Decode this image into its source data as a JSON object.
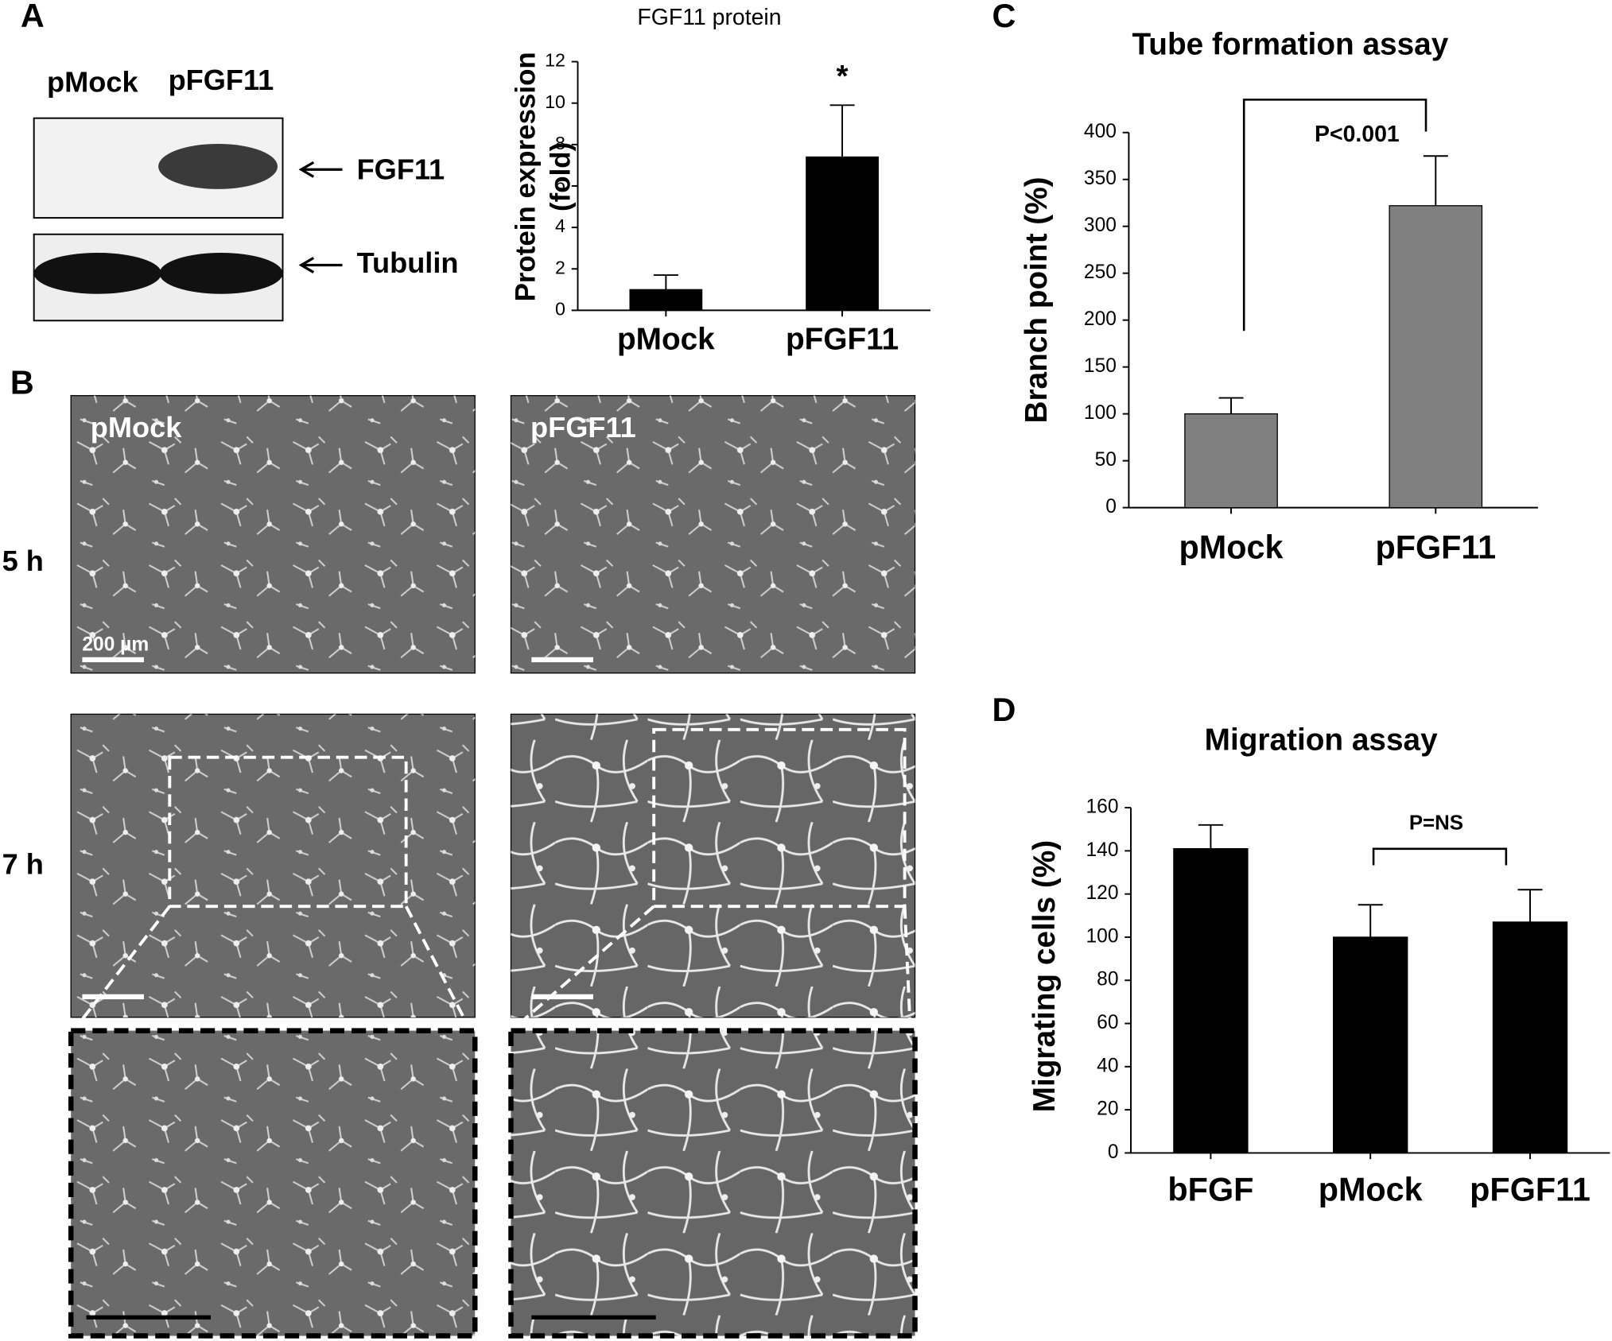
{
  "figure": {
    "panels": [
      "A",
      "B",
      "C",
      "D"
    ],
    "blot": {
      "lanes": [
        "pMock",
        "pFGF11"
      ],
      "bands": [
        "FGF11",
        "Tubulin"
      ]
    },
    "micrographs": {
      "columns": [
        "pMock",
        "pFGF11"
      ],
      "rows": [
        "5 h",
        "7 h"
      ],
      "scale_bar": "200 µm"
    }
  },
  "chart_data": [
    {
      "type": "bar",
      "title": "FGF11 protein",
      "y_label": [
        "Protein expression",
        "(fold)"
      ],
      "categories": [
        "pMock",
        "pFGF11"
      ],
      "values": [
        1,
        7.4
      ],
      "errors": [
        0.7,
        2.5
      ],
      "color": "#000000",
      "ylim": [
        0,
        12
      ],
      "yticks": [
        0,
        2,
        4,
        6,
        8,
        10,
        12
      ],
      "annotation": "*"
    },
    {
      "type": "bar",
      "title": "Tube formation assay",
      "y_label": "Branch point (%)",
      "categories": [
        "pMock",
        "pFGF11"
      ],
      "values": [
        100,
        322
      ],
      "errors": [
        17,
        53
      ],
      "color": "#808080",
      "ylim": [
        0,
        400
      ],
      "yticks": [
        0,
        50,
        100,
        150,
        200,
        250,
        300,
        350,
        400
      ],
      "annotation": "P<0.001"
    },
    {
      "type": "bar",
      "title": "Migration assay",
      "y_label": "Migrating cells (%)",
      "categories": [
        "bFGF",
        "pMock",
        "pFGF11"
      ],
      "values": [
        141,
        100,
        107
      ],
      "errors": [
        11,
        15,
        15
      ],
      "color": "#000000",
      "ylim": [
        0,
        160
      ],
      "yticks": [
        0,
        20,
        40,
        60,
        80,
        100,
        120,
        140,
        160
      ],
      "annotation": "P=NS"
    }
  ]
}
